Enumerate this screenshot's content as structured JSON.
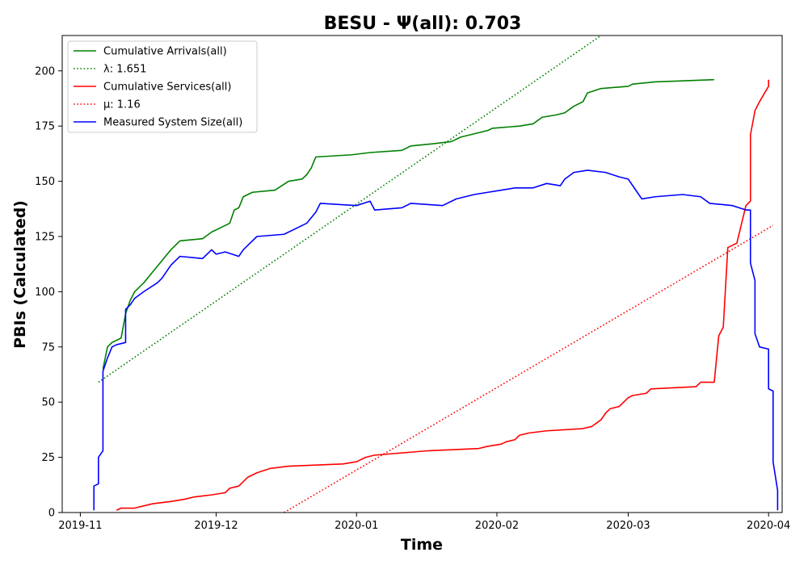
{
  "chart_data": {
    "type": "line",
    "title": "BESU -  Ψ(all): 0.703",
    "xlabel": "Time",
    "ylabel": "PBIs (Calculated)",
    "xlim": [
      "2019-10-28",
      "2020-04-04"
    ],
    "ylim": [
      0,
      216
    ],
    "grid": false,
    "legend_position": "top-left",
    "x_ticks": [
      {
        "date": "2019-11-01",
        "label": "2019-11"
      },
      {
        "date": "2019-12-01",
        "label": "2019-12"
      },
      {
        "date": "2020-01-01",
        "label": "2020-01"
      },
      {
        "date": "2020-02-01",
        "label": "2020-02"
      },
      {
        "date": "2020-03-01",
        "label": "2020-03"
      },
      {
        "date": "2020-04-01",
        "label": "2020-04"
      }
    ],
    "y_ticks": [
      0,
      25,
      50,
      75,
      100,
      125,
      150,
      175,
      200
    ],
    "series": [
      {
        "name": "Cumulative Arrivals(all)",
        "color": "#008000",
        "style": "solid",
        "points": [
          [
            "2019-11-06",
            65
          ],
          [
            "2019-11-07",
            75
          ],
          [
            "2019-11-08",
            77
          ],
          [
            "2019-11-10",
            79
          ],
          [
            "2019-11-11",
            90
          ],
          [
            "2019-11-12",
            96
          ],
          [
            "2019-11-13",
            100
          ],
          [
            "2019-11-15",
            104
          ],
          [
            "2019-11-17",
            109
          ],
          [
            "2019-11-19",
            114
          ],
          [
            "2019-11-21",
            119
          ],
          [
            "2019-11-23",
            123
          ],
          [
            "2019-11-28",
            124
          ],
          [
            "2019-11-30",
            127
          ],
          [
            "2019-12-02",
            129
          ],
          [
            "2019-12-04",
            131
          ],
          [
            "2019-12-05",
            137
          ],
          [
            "2019-12-06",
            138
          ],
          [
            "2019-12-07",
            143
          ],
          [
            "2019-12-09",
            145
          ],
          [
            "2019-12-14",
            146
          ],
          [
            "2019-12-17",
            150
          ],
          [
            "2019-12-20",
            151
          ],
          [
            "2019-12-21",
            153
          ],
          [
            "2019-12-22",
            156
          ],
          [
            "2019-12-23",
            161
          ],
          [
            "2019-12-31",
            162
          ],
          [
            "2020-01-04",
            163
          ],
          [
            "2020-01-11",
            164
          ],
          [
            "2020-01-13",
            166
          ],
          [
            "2020-01-18",
            167
          ],
          [
            "2020-01-22",
            168
          ],
          [
            "2020-01-24",
            170
          ],
          [
            "2020-01-28",
            172
          ],
          [
            "2020-01-30",
            173
          ],
          [
            "2020-01-31",
            174
          ],
          [
            "2020-02-06",
            175
          ],
          [
            "2020-02-09",
            176
          ],
          [
            "2020-02-11",
            179
          ],
          [
            "2020-02-14",
            180
          ],
          [
            "2020-02-16",
            181
          ],
          [
            "2020-02-18",
            184
          ],
          [
            "2020-02-20",
            186
          ],
          [
            "2020-02-21",
            190
          ],
          [
            "2020-02-24",
            192
          ],
          [
            "2020-03-01",
            193
          ],
          [
            "2020-03-02",
            194
          ],
          [
            "2020-03-07",
            195
          ],
          [
            "2020-03-20",
            196
          ]
        ]
      },
      {
        "name": "λ: 1.651",
        "color": "#008000",
        "style": "dotted",
        "points": [
          [
            "2019-11-05",
            59
          ],
          [
            "2020-02-24",
            216
          ]
        ]
      },
      {
        "name": "Cumulative Services(all)",
        "color": "#ff0000",
        "style": "solid",
        "points": [
          [
            "2019-11-09",
            1
          ],
          [
            "2019-11-10",
            2
          ],
          [
            "2019-11-13",
            2
          ],
          [
            "2019-11-17",
            4
          ],
          [
            "2019-11-21",
            5
          ],
          [
            "2019-11-24",
            6
          ],
          [
            "2019-11-26",
            7
          ],
          [
            "2019-11-30",
            8
          ],
          [
            "2019-12-03",
            9
          ],
          [
            "2019-12-04",
            11
          ],
          [
            "2019-12-06",
            12
          ],
          [
            "2019-12-08",
            16
          ],
          [
            "2019-12-10",
            18
          ],
          [
            "2019-12-13",
            20
          ],
          [
            "2019-12-17",
            21
          ],
          [
            "2019-12-29",
            22
          ],
          [
            "2020-01-01",
            23
          ],
          [
            "2020-01-03",
            25
          ],
          [
            "2020-01-05",
            26
          ],
          [
            "2020-01-17",
            28
          ],
          [
            "2020-01-28",
            29
          ],
          [
            "2020-01-30",
            30
          ],
          [
            "2020-02-02",
            31
          ],
          [
            "2020-02-03",
            32
          ],
          [
            "2020-02-05",
            33
          ],
          [
            "2020-02-06",
            35
          ],
          [
            "2020-02-08",
            36
          ],
          [
            "2020-02-12",
            37
          ],
          [
            "2020-02-20",
            38
          ],
          [
            "2020-02-22",
            39
          ],
          [
            "2020-02-24",
            42
          ],
          [
            "2020-02-25",
            45
          ],
          [
            "2020-02-26",
            47
          ],
          [
            "2020-02-28",
            48
          ],
          [
            "2020-03-01",
            52
          ],
          [
            "2020-03-02",
            53
          ],
          [
            "2020-03-05",
            54
          ],
          [
            "2020-03-06",
            56
          ],
          [
            "2020-03-16",
            57
          ],
          [
            "2020-03-17",
            59
          ],
          [
            "2020-03-20",
            59
          ],
          [
            "2020-03-21",
            80
          ],
          [
            "2020-03-22",
            84
          ],
          [
            "2020-03-23",
            120
          ],
          [
            "2020-03-25",
            122
          ],
          [
            "2020-03-27",
            139
          ],
          [
            "2020-03-28",
            141
          ],
          [
            "2020-03-28",
            171
          ],
          [
            "2020-03-29",
            182
          ],
          [
            "2020-03-30",
            186
          ],
          [
            "2020-04-01",
            193
          ],
          [
            "2020-04-01",
            196
          ]
        ]
      },
      {
        "name": "μ: 1.16",
        "color": "#ff0000",
        "style": "dotted",
        "points": [
          [
            "2019-12-16",
            0
          ],
          [
            "2020-04-02",
            130
          ]
        ]
      },
      {
        "name": "Measured System Size(all)",
        "color": "#0000ff",
        "style": "solid",
        "points": [
          [
            "2019-11-04",
            1
          ],
          [
            "2019-11-04",
            12
          ],
          [
            "2019-11-05",
            13
          ],
          [
            "2019-11-05",
            25
          ],
          [
            "2019-11-06",
            28
          ],
          [
            "2019-11-06",
            64
          ],
          [
            "2019-11-07",
            70
          ],
          [
            "2019-11-08",
            75
          ],
          [
            "2019-11-09",
            76
          ],
          [
            "2019-11-11",
            77
          ],
          [
            "2019-11-11",
            92
          ],
          [
            "2019-11-12",
            94
          ],
          [
            "2019-11-13",
            97
          ],
          [
            "2019-11-15",
            100
          ],
          [
            "2019-11-18",
            104
          ],
          [
            "2019-11-19",
            106
          ],
          [
            "2019-11-21",
            112
          ],
          [
            "2019-11-23",
            116
          ],
          [
            "2019-11-28",
            115
          ],
          [
            "2019-11-30",
            119
          ],
          [
            "2019-12-01",
            117
          ],
          [
            "2019-12-03",
            118
          ],
          [
            "2019-12-06",
            116
          ],
          [
            "2019-12-07",
            119
          ],
          [
            "2019-12-08",
            121
          ],
          [
            "2019-12-10",
            125
          ],
          [
            "2019-12-16",
            126
          ],
          [
            "2019-12-19",
            129
          ],
          [
            "2019-12-21",
            131
          ],
          [
            "2019-12-23",
            136
          ],
          [
            "2019-12-24",
            140
          ],
          [
            "2020-01-01",
            139
          ],
          [
            "2020-01-04",
            141
          ],
          [
            "2020-01-05",
            137
          ],
          [
            "2020-01-11",
            138
          ],
          [
            "2020-01-13",
            140
          ],
          [
            "2020-01-20",
            139
          ],
          [
            "2020-01-23",
            142
          ],
          [
            "2020-01-27",
            144
          ],
          [
            "2020-01-30",
            145
          ],
          [
            "2020-02-02",
            146
          ],
          [
            "2020-02-05",
            147
          ],
          [
            "2020-02-09",
            147
          ],
          [
            "2020-02-12",
            149
          ],
          [
            "2020-02-15",
            148
          ],
          [
            "2020-02-16",
            151
          ],
          [
            "2020-02-18",
            154
          ],
          [
            "2020-02-21",
            155
          ],
          [
            "2020-02-25",
            154
          ],
          [
            "2020-02-28",
            152
          ],
          [
            "2020-03-01",
            151
          ],
          [
            "2020-03-03",
            145
          ],
          [
            "2020-03-04",
            142
          ],
          [
            "2020-03-07",
            143
          ],
          [
            "2020-03-13",
            144
          ],
          [
            "2020-03-17",
            143
          ],
          [
            "2020-03-19",
            140
          ],
          [
            "2020-03-24",
            139
          ],
          [
            "2020-03-27",
            137
          ],
          [
            "2020-03-28",
            137
          ],
          [
            "2020-03-28",
            113
          ],
          [
            "2020-03-29",
            105
          ],
          [
            "2020-03-29",
            81
          ],
          [
            "2020-03-30",
            75
          ],
          [
            "2020-04-01",
            74
          ],
          [
            "2020-04-01",
            56
          ],
          [
            "2020-04-02",
            55
          ],
          [
            "2020-04-02",
            25
          ],
          [
            "2020-04-02",
            23
          ],
          [
            "2020-04-03",
            10
          ],
          [
            "2020-04-03",
            1
          ]
        ]
      }
    ]
  }
}
